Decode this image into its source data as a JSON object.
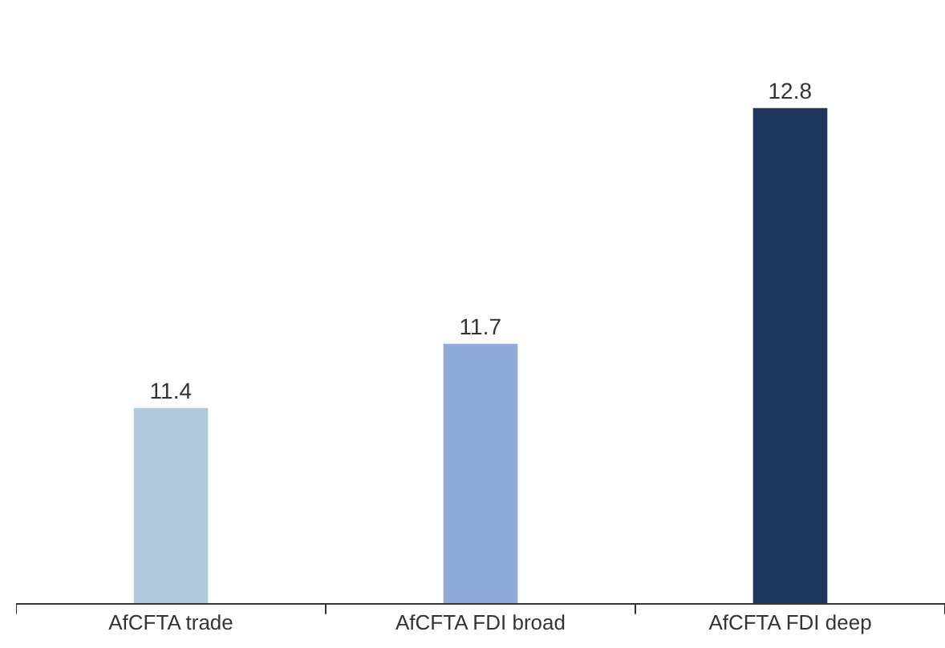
{
  "chart_data": {
    "type": "bar",
    "categories": [
      "AfCFTA trade",
      "AfCFTA FDI broad",
      "AfCFTA FDI deep"
    ],
    "values": [
      11.4,
      11.7,
      12.8
    ],
    "colors": [
      "#b0c9dc",
      "#8faad6",
      "#1c365e"
    ],
    "data_labels": true
  }
}
